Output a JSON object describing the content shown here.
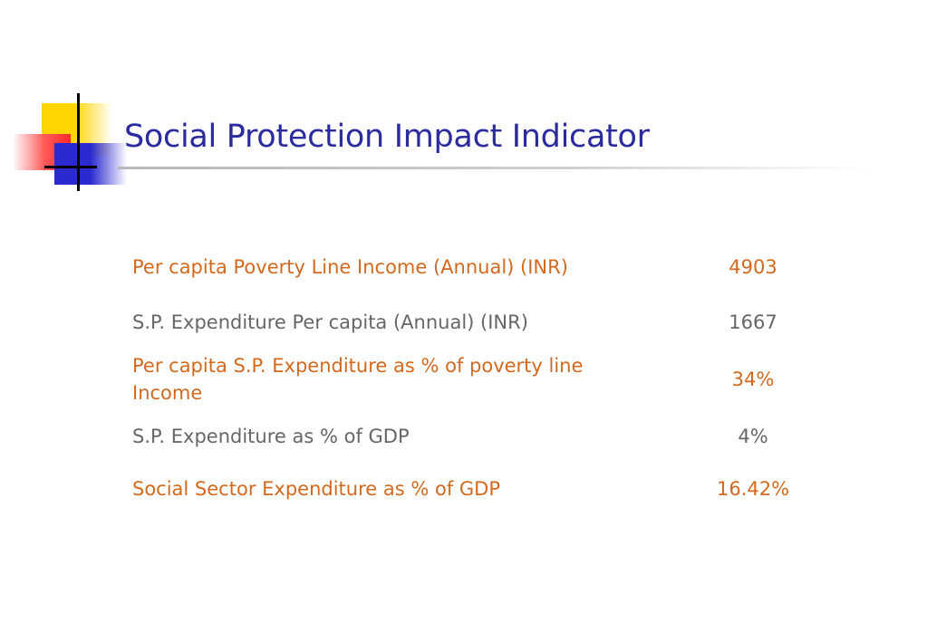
{
  "slide": {
    "title": "Social Protection Impact Indicator"
  },
  "indicators": [
    {
      "label": "Per capita Poverty Line Income (Annual) (INR)",
      "value": "4903"
    },
    {
      "label": "S.P. Expenditure Per capita (Annual) (INR)",
      "value": "1667"
    },
    {
      "label_line1": "Per capita S.P. Expenditure as % of poverty line",
      "label_line2": "Income",
      "value": "34%"
    },
    {
      "label": "S.P. Expenditure as % of GDP",
      "value": "4%"
    },
    {
      "label": "Social Sector Expenditure as % of GDP",
      "value": "16.42%"
    }
  ],
  "colors": {
    "title": "#2b2ba0",
    "highlight_row": "#d2691e",
    "normal_row": "#666666"
  }
}
